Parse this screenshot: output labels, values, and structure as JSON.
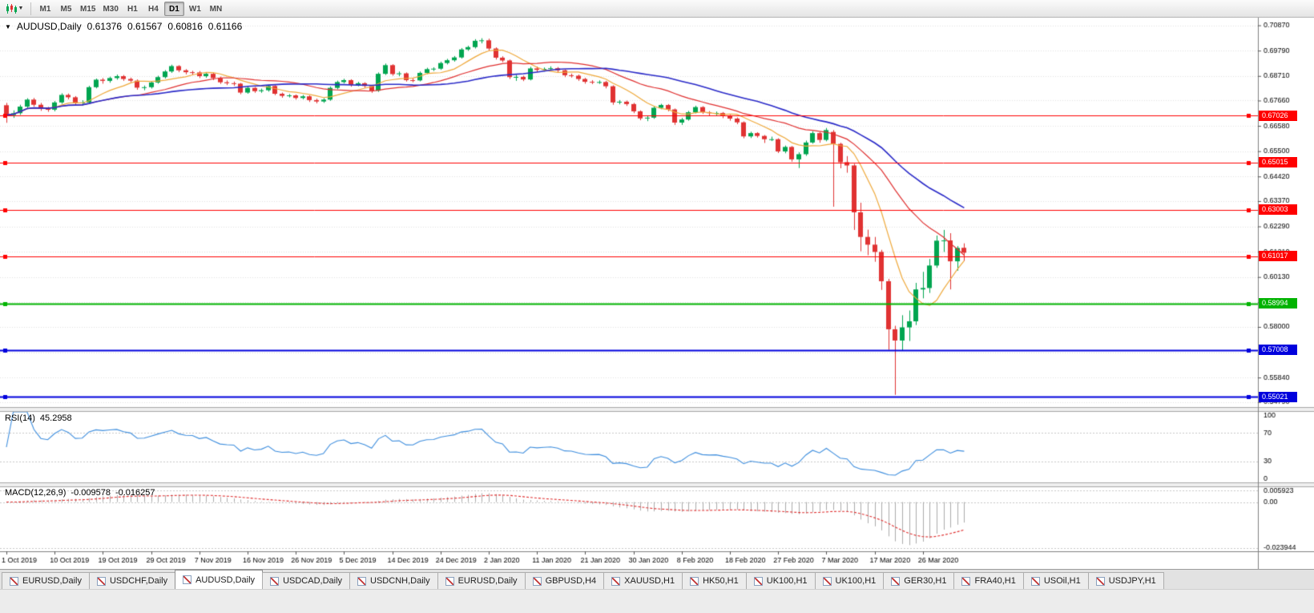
{
  "toolbar": {
    "timeframes": [
      "M1",
      "M5",
      "M15",
      "M30",
      "H1",
      "H4",
      "D1",
      "W1",
      "MN"
    ],
    "active_timeframe": "D1"
  },
  "chart": {
    "title": "AUDUSD,Daily",
    "ohlc": {
      "open": "0.61376",
      "high": "0.61567",
      "low": "0.60816",
      "close": "0.61166"
    }
  },
  "rsi": {
    "label": "RSI(14)",
    "value": "45.2958",
    "period": 14,
    "levels": [
      "100",
      "70",
      "30",
      "0"
    ],
    "color": "#3E8EDE"
  },
  "macd": {
    "label": "MACD(12,26,9)",
    "value": "-0.009578",
    "signal_value": "-0.016257",
    "fast": 12,
    "slow": 26,
    "signal": 9,
    "axis": [
      "0.005923",
      "0.00",
      "-0.023944"
    ],
    "hist_color": "#ABABAB",
    "signal_color": "#E03030"
  },
  "tabs": {
    "active_index": 2,
    "items": [
      "EURUSD,Daily",
      "USDCHF,Daily",
      "AUDUSD,Daily",
      "USDCAD,Daily",
      "USDCNH,Daily",
      "EURUSD,Daily",
      "GBPUSD,H4",
      "XAUUSD,H1",
      "HK50,H1",
      "UK100,H1",
      "UK100,H1",
      "GER30,H1",
      "FRA40,H1",
      "USOil,H1",
      "USDJPY,H1"
    ]
  },
  "chart_data": {
    "type": "candlestick",
    "symbol": "AUDUSD",
    "timeframe": "Daily",
    "bull_color": "#00A550",
    "bear_color": "#E03232",
    "y_axis_ticks": [
      "0.70870",
      "0.69790",
      "0.68710",
      "0.67660",
      "0.66580",
      "0.65500",
      "0.64420",
      "0.63370",
      "0.62290",
      "0.61210",
      "0.60130",
      "0.59050",
      "0.58000",
      "0.56920",
      "0.55840",
      "0.54790"
    ],
    "price_range": [
      0.5458,
      0.7113
    ],
    "x_labels": [
      "1 Oct 2019",
      "10 Oct 2019",
      "19 Oct 2019",
      "29 Oct 2019",
      "7 Nov 2019",
      "16 Nov 2019",
      "26 Nov 2019",
      "5 Dec 2019",
      "14 Dec 2019",
      "24 Dec 2019",
      "2 Jan 2020",
      "11 Jan 2020",
      "21 Jan 2020",
      "30 Jan 2020",
      "8 Feb 2020",
      "18 Feb 2020",
      "27 Feb 2020",
      "7 Mar 2020",
      "17 Mar 2020",
      "26 Mar 2020"
    ],
    "label_every": 7,
    "moving_averages": [
      {
        "period": 8,
        "color": "#EFA93B"
      },
      {
        "period": 20,
        "color": "#E03030"
      },
      {
        "period": 34,
        "color": "#2A2AC8"
      }
    ],
    "horizontal_lines": [
      {
        "price": 0.67026,
        "label": "0.67026",
        "color": "#FF0000",
        "width": 1
      },
      {
        "price": 0.65015,
        "label": "0.65015",
        "color": "#FF0000",
        "width": 1
      },
      {
        "price": 0.63003,
        "label": "0.63003",
        "color": "#FF0000",
        "width": 1
      },
      {
        "price": 0.61017,
        "label": "0.61017",
        "color": "#FF0000",
        "width": 1
      },
      {
        "price": 0.58994,
        "label": "0.58994",
        "color": "#00B300",
        "width": 2
      },
      {
        "price": 0.57008,
        "label": "0.57008",
        "color": "#0000DD",
        "width": 2
      },
      {
        "price": 0.55021,
        "label": "0.55021",
        "color": "#0000DD",
        "width": 2
      }
    ],
    "candles": [
      [
        0.6746,
        0.6756,
        0.6671,
        0.6704
      ],
      [
        0.6704,
        0.6724,
        0.6692,
        0.6712
      ],
      [
        0.6712,
        0.6748,
        0.6705,
        0.674
      ],
      [
        0.674,
        0.6776,
        0.6733,
        0.677
      ],
      [
        0.677,
        0.6777,
        0.674,
        0.6748
      ],
      [
        0.6748,
        0.6756,
        0.6722,
        0.673
      ],
      [
        0.673,
        0.6739,
        0.6718,
        0.6727
      ],
      [
        0.6727,
        0.6764,
        0.672,
        0.6758
      ],
      [
        0.6758,
        0.6797,
        0.6752,
        0.679
      ],
      [
        0.679,
        0.6796,
        0.6771,
        0.678
      ],
      [
        0.678,
        0.6785,
        0.6748,
        0.6755
      ],
      [
        0.6755,
        0.6767,
        0.6745,
        0.6758
      ],
      [
        0.6758,
        0.6829,
        0.6755,
        0.6823
      ],
      [
        0.6823,
        0.686,
        0.6818,
        0.6855
      ],
      [
        0.6855,
        0.6862,
        0.6838,
        0.685
      ],
      [
        0.685,
        0.6868,
        0.6842,
        0.6862
      ],
      [
        0.6862,
        0.6877,
        0.6855,
        0.687
      ],
      [
        0.687,
        0.6875,
        0.685,
        0.6858
      ],
      [
        0.6858,
        0.6864,
        0.6844,
        0.6851
      ],
      [
        0.6851,
        0.6856,
        0.6812,
        0.6821
      ],
      [
        0.6821,
        0.683,
        0.681,
        0.6823
      ],
      [
        0.6823,
        0.6849,
        0.6817,
        0.6843
      ],
      [
        0.6843,
        0.6872,
        0.6838,
        0.6866
      ],
      [
        0.6866,
        0.6896,
        0.686,
        0.689
      ],
      [
        0.689,
        0.6919,
        0.6884,
        0.6913
      ],
      [
        0.6913,
        0.6917,
        0.6887,
        0.6895
      ],
      [
        0.6895,
        0.69,
        0.6878,
        0.6887
      ],
      [
        0.6887,
        0.6893,
        0.6876,
        0.6886
      ],
      [
        0.6886,
        0.6892,
        0.6862,
        0.687
      ],
      [
        0.687,
        0.6885,
        0.6863,
        0.688
      ],
      [
        0.688,
        0.6884,
        0.6853,
        0.6862
      ],
      [
        0.6862,
        0.6868,
        0.6837,
        0.6844
      ],
      [
        0.6844,
        0.6852,
        0.6832,
        0.684
      ],
      [
        0.684,
        0.6847,
        0.6829,
        0.6838
      ],
      [
        0.6838,
        0.6841,
        0.6793,
        0.68
      ],
      [
        0.68,
        0.6826,
        0.6795,
        0.682
      ],
      [
        0.682,
        0.6824,
        0.6799,
        0.6806
      ],
      [
        0.6806,
        0.6817,
        0.6799,
        0.681
      ],
      [
        0.681,
        0.6833,
        0.6804,
        0.6828
      ],
      [
        0.6828,
        0.6832,
        0.6789,
        0.6795
      ],
      [
        0.6795,
        0.68,
        0.6778,
        0.6786
      ],
      [
        0.6786,
        0.6794,
        0.6779,
        0.6788
      ],
      [
        0.6788,
        0.6792,
        0.677,
        0.6777
      ],
      [
        0.6777,
        0.679,
        0.6771,
        0.6784
      ],
      [
        0.6784,
        0.6788,
        0.676,
        0.6768
      ],
      [
        0.6768,
        0.6774,
        0.6754,
        0.6762
      ],
      [
        0.6762,
        0.6776,
        0.6756,
        0.677
      ],
      [
        0.677,
        0.6826,
        0.6765,
        0.682
      ],
      [
        0.682,
        0.6851,
        0.6814,
        0.6845
      ],
      [
        0.6845,
        0.6859,
        0.6839,
        0.6853
      ],
      [
        0.6853,
        0.6857,
        0.6825,
        0.6833
      ],
      [
        0.6833,
        0.6846,
        0.6827,
        0.684
      ],
      [
        0.684,
        0.6844,
        0.682,
        0.6828
      ],
      [
        0.6828,
        0.6832,
        0.6799,
        0.6808
      ],
      [
        0.6808,
        0.6886,
        0.6803,
        0.688
      ],
      [
        0.688,
        0.6924,
        0.6875,
        0.6917
      ],
      [
        0.6917,
        0.6921,
        0.6872,
        0.6879
      ],
      [
        0.6879,
        0.689,
        0.687,
        0.6882
      ],
      [
        0.6882,
        0.6886,
        0.6847,
        0.6853
      ],
      [
        0.6853,
        0.686,
        0.6844,
        0.6852
      ],
      [
        0.6852,
        0.689,
        0.6848,
        0.6884
      ],
      [
        0.6884,
        0.6906,
        0.6879,
        0.69
      ],
      [
        0.69,
        0.6908,
        0.6892,
        0.6902
      ],
      [
        0.6902,
        0.6932,
        0.6897,
        0.6926
      ],
      [
        0.6926,
        0.6944,
        0.692,
        0.6938
      ],
      [
        0.6938,
        0.6956,
        0.6932,
        0.695
      ],
      [
        0.695,
        0.699,
        0.6945,
        0.6984
      ],
      [
        0.6984,
        0.7,
        0.6978,
        0.6994
      ],
      [
        0.6994,
        0.7028,
        0.6988,
        0.7021
      ],
      [
        0.7021,
        0.7032,
        0.701,
        0.7023
      ],
      [
        0.7023,
        0.703,
        0.698,
        0.6988
      ],
      [
        0.6988,
        0.6993,
        0.6941,
        0.6949
      ],
      [
        0.6949,
        0.6955,
        0.693,
        0.6937
      ],
      [
        0.6937,
        0.6941,
        0.6858,
        0.6866
      ],
      [
        0.6866,
        0.6876,
        0.685,
        0.6867
      ],
      [
        0.6867,
        0.6872,
        0.6849,
        0.6856
      ],
      [
        0.6856,
        0.691,
        0.6852,
        0.6903
      ],
      [
        0.6903,
        0.6911,
        0.6887,
        0.6897
      ],
      [
        0.6897,
        0.6907,
        0.689,
        0.6901
      ],
      [
        0.6901,
        0.6912,
        0.6894,
        0.6904
      ],
      [
        0.6904,
        0.6909,
        0.6886,
        0.6895
      ],
      [
        0.6895,
        0.6899,
        0.6866,
        0.6874
      ],
      [
        0.6874,
        0.6881,
        0.6864,
        0.6872
      ],
      [
        0.6872,
        0.6877,
        0.685,
        0.6858
      ],
      [
        0.6858,
        0.6863,
        0.6838,
        0.6846
      ],
      [
        0.6846,
        0.6853,
        0.6836,
        0.6844
      ],
      [
        0.6844,
        0.6852,
        0.6837,
        0.6845
      ],
      [
        0.6845,
        0.685,
        0.6818,
        0.6827
      ],
      [
        0.6827,
        0.6831,
        0.6748,
        0.6758
      ],
      [
        0.6758,
        0.6768,
        0.675,
        0.6761
      ],
      [
        0.6761,
        0.6766,
        0.6743,
        0.6751
      ],
      [
        0.6751,
        0.6756,
        0.6712,
        0.672
      ],
      [
        0.672,
        0.6724,
        0.6682,
        0.669
      ],
      [
        0.669,
        0.67,
        0.6678,
        0.6693
      ],
      [
        0.6693,
        0.6741,
        0.6688,
        0.6735
      ],
      [
        0.6735,
        0.6752,
        0.6729,
        0.6747
      ],
      [
        0.6747,
        0.6751,
        0.672,
        0.6728
      ],
      [
        0.6728,
        0.6732,
        0.6662,
        0.6672
      ],
      [
        0.6672,
        0.6692,
        0.6662,
        0.6685
      ],
      [
        0.6685,
        0.6722,
        0.668,
        0.6716
      ],
      [
        0.6716,
        0.6744,
        0.6711,
        0.6738
      ],
      [
        0.6738,
        0.6742,
        0.6709,
        0.6716
      ],
      [
        0.6716,
        0.6721,
        0.67,
        0.6712
      ],
      [
        0.6712,
        0.6719,
        0.6703,
        0.6713
      ],
      [
        0.6713,
        0.6717,
        0.6691,
        0.67
      ],
      [
        0.67,
        0.6705,
        0.668,
        0.6689
      ],
      [
        0.6689,
        0.6694,
        0.6665,
        0.6673
      ],
      [
        0.6673,
        0.6677,
        0.6605,
        0.6613
      ],
      [
        0.6613,
        0.6633,
        0.6606,
        0.6627
      ],
      [
        0.6627,
        0.6631,
        0.6608,
        0.6615
      ],
      [
        0.6615,
        0.6619,
        0.6585,
        0.6601
      ],
      [
        0.6601,
        0.6612,
        0.6593,
        0.6601
      ],
      [
        0.6601,
        0.6605,
        0.6542,
        0.6549
      ],
      [
        0.6549,
        0.6574,
        0.6541,
        0.6568
      ],
      [
        0.6568,
        0.6572,
        0.6505,
        0.6515
      ],
      [
        0.6515,
        0.6545,
        0.6478,
        0.6537
      ],
      [
        0.6537,
        0.6595,
        0.653,
        0.6587
      ],
      [
        0.6587,
        0.6635,
        0.6582,
        0.6627
      ],
      [
        0.6627,
        0.6632,
        0.6586,
        0.6598
      ],
      [
        0.6598,
        0.6649,
        0.6592,
        0.664
      ],
      [
        0.6632,
        0.664,
        0.6313,
        0.6581
      ],
      [
        0.6581,
        0.6586,
        0.6477,
        0.6503
      ],
      [
        0.6503,
        0.6529,
        0.6458,
        0.6489
      ],
      [
        0.6489,
        0.6496,
        0.6214,
        0.6289
      ],
      [
        0.6289,
        0.633,
        0.6123,
        0.6184
      ],
      [
        0.6184,
        0.6215,
        0.6106,
        0.6151
      ],
      [
        0.6151,
        0.6184,
        0.6078,
        0.612
      ],
      [
        0.612,
        0.6129,
        0.5958,
        0.5995
      ],
      [
        0.5995,
        0.6005,
        0.5702,
        0.579
      ],
      [
        0.579,
        0.5805,
        0.551,
        0.5742
      ],
      [
        0.5742,
        0.585,
        0.57,
        0.5798
      ],
      [
        0.5798,
        0.587,
        0.574,
        0.5824
      ],
      [
        0.5824,
        0.5988,
        0.5808,
        0.596
      ],
      [
        0.596,
        0.6035,
        0.5922,
        0.5966
      ],
      [
        0.5966,
        0.609,
        0.5945,
        0.6062
      ],
      [
        0.6062,
        0.619,
        0.6052,
        0.6168
      ],
      [
        0.6168,
        0.6214,
        0.612,
        0.6169
      ],
      [
        0.6169,
        0.62,
        0.596,
        0.608
      ],
      [
        0.608,
        0.6145,
        0.604,
        0.6137
      ],
      [
        0.61376,
        0.61567,
        0.60816,
        0.61166
      ]
    ]
  }
}
